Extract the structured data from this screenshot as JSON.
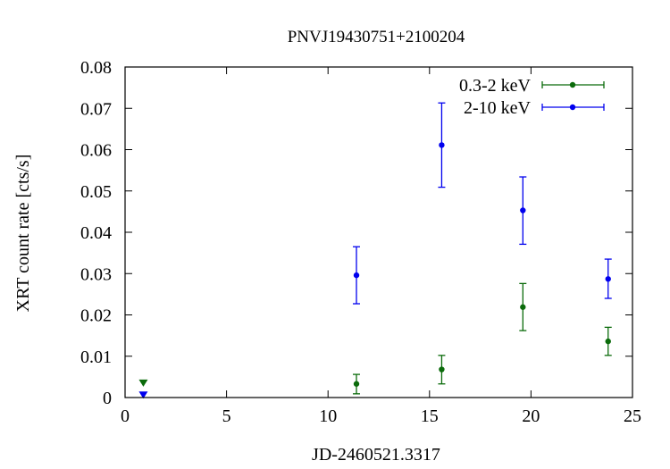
{
  "chart_data": {
    "type": "scatter",
    "title": "PNVJ19430751+2100204",
    "xlabel": "JD-2460521.3317",
    "ylabel": "XRT count rate [cts/s]",
    "xlim": [
      0,
      25
    ],
    "ylim": [
      0,
      0.08
    ],
    "xticks": [
      0,
      5,
      10,
      15,
      20,
      25
    ],
    "yticks": [
      0,
      0.01,
      0.02,
      0.03,
      0.04,
      0.05,
      0.06,
      0.07,
      0.08
    ],
    "xtick_labels": [
      "0",
      "5",
      "10",
      "15",
      "20",
      "25"
    ],
    "ytick_labels": [
      "0",
      "0.01",
      "0.02",
      "0.03",
      "0.04",
      "0.05",
      "0.06",
      "0.07",
      "0.08"
    ],
    "grid": false,
    "legend_position": "top-right",
    "series": [
      {
        "name": "0.3-2 keV",
        "color": "#0b6b0b",
        "points": [
          {
            "x": 11.4,
            "y": 0.0033,
            "yerr_low": 0.0024,
            "yerr_high": 0.0023
          },
          {
            "x": 15.6,
            "y": 0.0068,
            "yerr_low": 0.0035,
            "yerr_high": 0.0034
          },
          {
            "x": 19.6,
            "y": 0.0219,
            "yerr_low": 0.0057,
            "yerr_high": 0.0057
          },
          {
            "x": 23.8,
            "y": 0.0136,
            "yerr_low": 0.0034,
            "yerr_high": 0.0034
          }
        ],
        "upper_limits": [
          {
            "x": 0.9,
            "y": 0.0035
          }
        ]
      },
      {
        "name": "2-10 keV",
        "color": "#0000ee",
        "points": [
          {
            "x": 11.4,
            "y": 0.0296,
            "yerr_low": 0.0069,
            "yerr_high": 0.0069
          },
          {
            "x": 15.6,
            "y": 0.0611,
            "yerr_low": 0.0102,
            "yerr_high": 0.0102
          },
          {
            "x": 19.6,
            "y": 0.0453,
            "yerr_low": 0.0082,
            "yerr_high": 0.0081
          },
          {
            "x": 23.8,
            "y": 0.0287,
            "yerr_low": 0.0047,
            "yerr_high": 0.0048
          }
        ],
        "upper_limits": [
          {
            "x": 0.9,
            "y": 0.0006
          }
        ]
      }
    ]
  }
}
